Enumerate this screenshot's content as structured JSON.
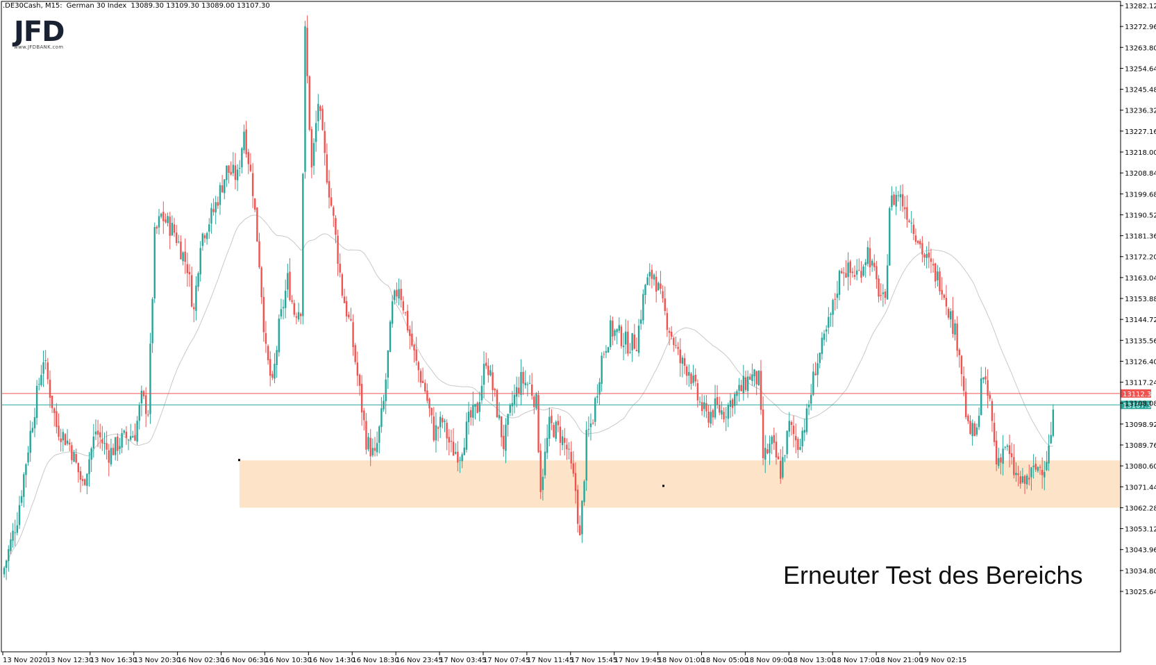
{
  "header": {
    "symbol": ".DE30Cash, M15:",
    "instrument": "German 30 Index",
    "ohlc": "13089.30 13109.30 13089.00 13107.30"
  },
  "logo": {
    "text": "JFD",
    "subtext": "www.JFDBANK.com"
  },
  "annotation": {
    "text": "Erneuter Test des Bereichs"
  },
  "colors": {
    "up_candle": "#26a69a",
    "down_candle": "#ef5350",
    "resistance_line": "#ef5350",
    "bid_line": "#26a69a",
    "moving_average": "#c8c8c8",
    "zone_fill": "#fde4c8"
  },
  "chart_data": {
    "type": "candlestick",
    "timeframe": "M15",
    "y_ticks": [
      "13282.12",
      "13272.96",
      "13263.80",
      "13254.64",
      "13245.48",
      "13236.32",
      "13227.16",
      "13218.00",
      "13208.84",
      "13199.68",
      "13190.52",
      "13181.36",
      "13172.20",
      "13163.04",
      "13153.88",
      "13144.72",
      "13135.56",
      "13126.40",
      "13117.24",
      "13108.08",
      "13098.92",
      "13089.76",
      "13080.60",
      "13071.44",
      "13062.28",
      "13053.12",
      "13043.96",
      "13034.80",
      "13025.64"
    ],
    "ylim": [
      13021.5,
      13283.5
    ],
    "x_ticks": [
      "13 Nov 2020",
      "13 Nov 12:30",
      "13 Nov 16:30",
      "13 Nov 20:30",
      "16 Nov 02:30",
      "16 Nov 06:30",
      "16 Nov 10:30",
      "16 Nov 14:30",
      "16 Nov 18:30",
      "16 Nov 23:45",
      "17 Nov 03:45",
      "17 Nov 07:45",
      "17 Nov 11:45",
      "17 Nov 15:45",
      "17 Nov 19:45",
      "18 Nov 01:00",
      "18 Nov 05:00",
      "18 Nov 09:00",
      "18 Nov 13:00",
      "18 Nov 17:00",
      "18 Nov 21:00",
      "19 Nov 02:15"
    ],
    "horizontal_lines": [
      {
        "name": "resistance",
        "value": 13112.3,
        "label": "13112.30",
        "color": "#ef5350"
      },
      {
        "name": "current-price",
        "value": 13107.3,
        "label": "13107.30",
        "color": "#26a69a"
      }
    ],
    "zone": {
      "from": 13062.3,
      "to": 13083.0,
      "start_label": "16 Nov 06:30"
    },
    "close_path": [
      [
        0,
        13036
      ],
      [
        6,
        13058
      ],
      [
        12,
        13095
      ],
      [
        18,
        13128
      ],
      [
        24,
        13098
      ],
      [
        30,
        13090
      ],
      [
        36,
        13072
      ],
      [
        42,
        13096
      ],
      [
        48,
        13086
      ],
      [
        54,
        13092
      ],
      [
        60,
        13095
      ],
      [
        63,
        13110
      ],
      [
        66,
        13105
      ],
      [
        69,
        13181
      ],
      [
        72,
        13190
      ],
      [
        78,
        13183
      ],
      [
        84,
        13168
      ],
      [
        87,
        13148
      ],
      [
        90,
        13180
      ],
      [
        96,
        13192
      ],
      [
        102,
        13210
      ],
      [
        107,
        13207
      ],
      [
        110,
        13228
      ],
      [
        114,
        13202
      ],
      [
        117,
        13170
      ],
      [
        120,
        13130
      ],
      [
        123,
        13115
      ],
      [
        126,
        13141
      ],
      [
        130,
        13162
      ],
      [
        133,
        13148
      ],
      [
        136,
        13150
      ],
      [
        138,
        13270
      ],
      [
        141,
        13210
      ],
      [
        144,
        13240
      ],
      [
        147,
        13215
      ],
      [
        151,
        13188
      ],
      [
        155,
        13157
      ],
      [
        159,
        13140
      ],
      [
        162,
        13120
      ],
      [
        166,
        13092
      ],
      [
        170,
        13084
      ],
      [
        174,
        13108
      ],
      [
        178,
        13150
      ],
      [
        181,
        13160
      ],
      [
        185,
        13142
      ],
      [
        189,
        13125
      ],
      [
        193,
        13114
      ],
      [
        197,
        13095
      ],
      [
        201,
        13100
      ],
      [
        205,
        13088
      ],
      [
        209,
        13086
      ],
      [
        213,
        13100
      ],
      [
        217,
        13106
      ],
      [
        221,
        13128
      ],
      [
        225,
        13110
      ],
      [
        229,
        13090
      ],
      [
        233,
        13108
      ],
      [
        237,
        13118
      ],
      [
        241,
        13116
      ],
      [
        244,
        13108
      ],
      [
        246,
        13072
      ],
      [
        250,
        13098
      ],
      [
        254,
        13096
      ],
      [
        258,
        13088
      ],
      [
        262,
        13070
      ],
      [
        264,
        13048
      ],
      [
        267,
        13092
      ],
      [
        270,
        13102
      ],
      [
        274,
        13128
      ],
      [
        278,
        13140
      ],
      [
        282,
        13138
      ],
      [
        286,
        13134
      ],
      [
        290,
        13135
      ],
      [
        294,
        13160
      ],
      [
        298,
        13165
      ],
      [
        302,
        13150
      ],
      [
        306,
        13138
      ],
      [
        310,
        13126
      ],
      [
        314,
        13123
      ],
      [
        318,
        13110
      ],
      [
        322,
        13102
      ],
      [
        326,
        13106
      ],
      [
        330,
        13104
      ],
      [
        334,
        13110
      ],
      [
        338,
        13114
      ],
      [
        342,
        13120
      ],
      [
        346,
        13118
      ],
      [
        348,
        13084
      ],
      [
        352,
        13090
      ],
      [
        356,
        13078
      ],
      [
        360,
        13098
      ],
      [
        364,
        13090
      ],
      [
        368,
        13102
      ],
      [
        372,
        13124
      ],
      [
        376,
        13135
      ],
      [
        380,
        13150
      ],
      [
        384,
        13168
      ],
      [
        388,
        13165
      ],
      [
        392,
        13165
      ],
      [
        396,
        13175
      ],
      [
        400,
        13160
      ],
      [
        404,
        13150
      ],
      [
        406,
        13195
      ],
      [
        410,
        13200
      ],
      [
        414,
        13192
      ],
      [
        418,
        13183
      ],
      [
        422,
        13172
      ],
      [
        426,
        13166
      ],
      [
        430,
        13160
      ],
      [
        434,
        13146
      ],
      [
        438,
        13132
      ],
      [
        440,
        13112
      ],
      [
        442,
        13096
      ],
      [
        446,
        13094
      ],
      [
        448,
        13120
      ],
      [
        452,
        13108
      ],
      [
        455,
        13082
      ],
      [
        459,
        13090
      ],
      [
        463,
        13078
      ],
      [
        467,
        13072
      ],
      [
        470,
        13076
      ],
      [
        474,
        13080
      ],
      [
        477,
        13081
      ],
      [
        479,
        13088
      ],
      [
        482,
        13108
      ]
    ],
    "bars": 482
  }
}
